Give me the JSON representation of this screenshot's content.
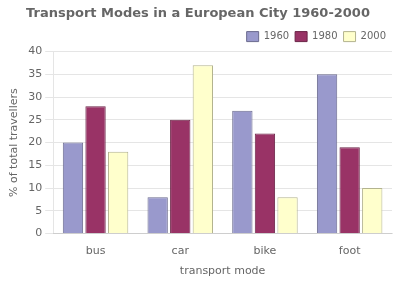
{
  "chart_data": {
    "type": "bar",
    "title": "Transport Modes in a European City 1960-2000",
    "xlabel": "transport mode",
    "ylabel": "% of total travellers",
    "categories": [
      "bus",
      "car",
      "bike",
      "foot"
    ],
    "series": [
      {
        "name": "1960",
        "color": "#9999cc",
        "values": [
          20,
          8,
          27,
          35
        ]
      },
      {
        "name": "1980",
        "color": "#993366",
        "values": [
          28,
          25,
          22,
          19
        ]
      },
      {
        "name": "2000",
        "color": "#ffffcc",
        "values": [
          18,
          37,
          8,
          10
        ]
      }
    ],
    "ylim": [
      0,
      40
    ],
    "yticks": [
      0,
      5,
      10,
      15,
      20,
      25,
      30,
      35,
      40
    ],
    "grid": true,
    "legend": "upper right"
  }
}
